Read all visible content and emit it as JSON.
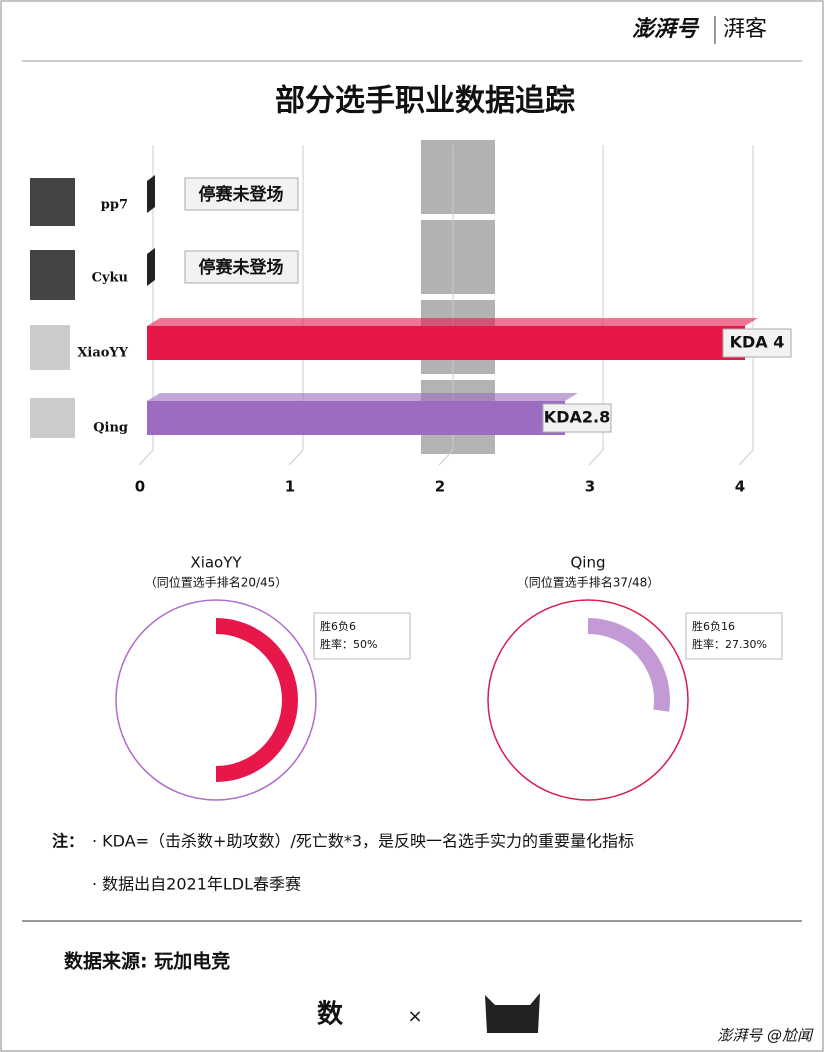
{
  "header": {
    "brand": "澎湃号",
    "channel": "湃客"
  },
  "chart_data": [
    {
      "type": "bar",
      "title": "部分选手职业数据追踪",
      "categories": [
        "pp7",
        "Cyku",
        "XiaoYY",
        "Qing"
      ],
      "values": [
        null,
        null,
        4,
        2.8
      ],
      "value_labels": [
        "停赛未登场",
        "停赛未登场",
        "KDA 4",
        "KDA2.8"
      ],
      "colors": [
        "#222222",
        "#222222",
        "#e8174a",
        "#9b6cc0"
      ],
      "xlim": [
        0,
        4
      ],
      "xticks": [
        0,
        1,
        2,
        3,
        4
      ],
      "grid": true
    },
    {
      "type": "donut",
      "title": "XiaoYY",
      "subtitle": "（同位置选手排名20/45）",
      "values": [
        50
      ],
      "value_labels": [
        "胜率：50%"
      ],
      "annotation": "胜6负6",
      "color": "#e8174a",
      "ring_color": "#b06cc8"
    },
    {
      "type": "donut",
      "title": "Qing",
      "subtitle": "（同位置选手排名37/48）",
      "values": [
        27.3
      ],
      "value_labels": [
        "胜率：27.30%"
      ],
      "annotation": "胜6负16",
      "color": "#c49ad6",
      "ring_color": "#d81e4e"
    }
  ],
  "notes": {
    "label": "注：",
    "items": [
      "· KDA=（击杀数+助攻数）/死亡数*3，是反映一名选手实力的重要量化指标",
      "· 数据出自2021年LDL春季赛"
    ]
  },
  "source": "数据来源: 玩加电竞",
  "footer": {
    "logo": "数",
    "times": "×",
    "watermark": "澎湃号 @尬闻"
  }
}
